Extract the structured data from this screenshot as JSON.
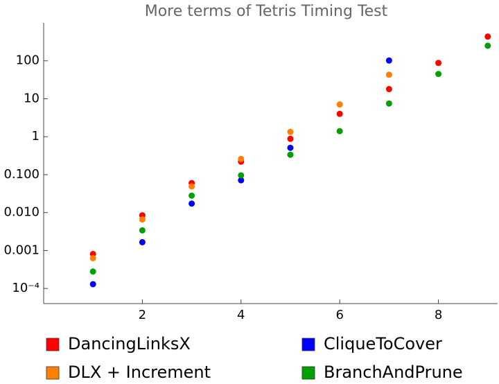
{
  "chart_data": {
    "type": "scatter",
    "title": "More terms of Tetris Timing Test",
    "xlim": [
      0,
      9.2
    ],
    "ylim": [
      4e-05,
      1000
    ],
    "ylog": true,
    "xticks": [
      2,
      4,
      6,
      8
    ],
    "yticks": [
      {
        "value": 0.0001,
        "label": "10⁻⁴"
      },
      {
        "value": 0.001,
        "label": "0.001"
      },
      {
        "value": 0.01,
        "label": "0.010"
      },
      {
        "value": 0.1,
        "label": "0.100"
      },
      1,
      10,
      100
    ],
    "series": [
      {
        "name": "DancingLinksX",
        "color": "#ff0000",
        "x": [
          1,
          2,
          3,
          4,
          5,
          6,
          7,
          8,
          9
        ],
        "y": [
          0.00081,
          0.0085,
          0.06,
          0.22,
          0.88,
          4.0,
          18,
          88,
          435
        ]
      },
      {
        "name": "CliqueToCover",
        "color": "#0000ff",
        "x": [
          1,
          2,
          3,
          4,
          5,
          7
        ],
        "y": [
          0.00013,
          0.00166,
          0.0173,
          0.071,
          0.51,
          102
        ]
      },
      {
        "name": "DLX + Increment",
        "color": "#ff8000",
        "x": [
          1,
          2,
          3,
          4,
          5,
          6,
          7
        ],
        "y": [
          0.00063,
          0.0066,
          0.049,
          0.26,
          1.34,
          7.1,
          43
        ]
      },
      {
        "name": "BranchAndPrune",
        "color": "#00a000",
        "x": [
          1,
          2,
          3,
          4,
          5,
          6,
          7,
          8,
          9
        ],
        "y": [
          0.00028,
          0.0034,
          0.028,
          0.096,
          0.335,
          1.4,
          7.5,
          45,
          250
        ]
      }
    ]
  }
}
